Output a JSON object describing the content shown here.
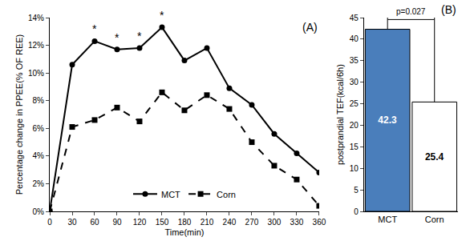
{
  "chart_data": [
    {
      "type": "line",
      "x": [
        0,
        30,
        60,
        90,
        120,
        150,
        180,
        210,
        240,
        270,
        300,
        330,
        360
      ],
      "xlim": [
        0,
        360
      ],
      "xticks": [
        0,
        30,
        60,
        90,
        120,
        150,
        180,
        210,
        240,
        270,
        300,
        330,
        360
      ],
      "ylim": [
        0,
        14
      ],
      "yticks": [
        {
          "value": 0,
          "label": "0%"
        },
        {
          "value": 2,
          "label": "2%"
        },
        {
          "value": 4,
          "label": "4%"
        },
        {
          "value": 6,
          "label": "6%"
        },
        {
          "value": 8,
          "label": "8%"
        },
        {
          "value": 10,
          "label": "10%"
        },
        {
          "value": 12,
          "label": "12%"
        },
        {
          "value": 14,
          "label": "14%"
        }
      ],
      "x_label": "Time(min)",
      "y_label": "Percentage change in PPEE(% OF REE)",
      "grid": false,
      "legend": "bottom",
      "series": [
        {
          "name": "MCT",
          "color": "#000000",
          "marker": "circle",
          "line_style": "solid",
          "values": [
            0,
            10.6,
            12.3,
            11.7,
            11.8,
            13.3,
            10.9,
            11.8,
            8.9,
            7.7,
            5.6,
            4.2,
            2.8
          ]
        },
        {
          "name": "Corn",
          "color": "#000000",
          "marker": "square",
          "line_style": "dash",
          "values": [
            0,
            6.1,
            6.6,
            7.5,
            6.5,
            8.6,
            7.3,
            8.4,
            7.4,
            5.0,
            3.3,
            2.3,
            0.4
          ]
        }
      ],
      "annotations": [
        {
          "text": "(A)"
        },
        {
          "text": "*",
          "x": 60
        },
        {
          "text": "*",
          "x": 90
        },
        {
          "text": "*",
          "x": 120
        },
        {
          "text": "*",
          "x": 150
        }
      ]
    },
    {
      "type": "bar",
      "categories": [
        "MCT",
        "Corn"
      ],
      "values": [
        42.3,
        25.4
      ],
      "colors": [
        "#4a7ebb",
        "#ffffff"
      ],
      "ylim": [
        0,
        45
      ],
      "yticks": [
        0,
        5,
        10,
        15,
        20,
        25,
        30,
        35,
        40,
        45
      ],
      "y_label": "postprandial TEF(kcal/6h)",
      "grid": false,
      "data_labels": true,
      "annotations": [
        {
          "text": "(B)"
        },
        {
          "text": "p=0.027"
        }
      ]
    }
  ]
}
